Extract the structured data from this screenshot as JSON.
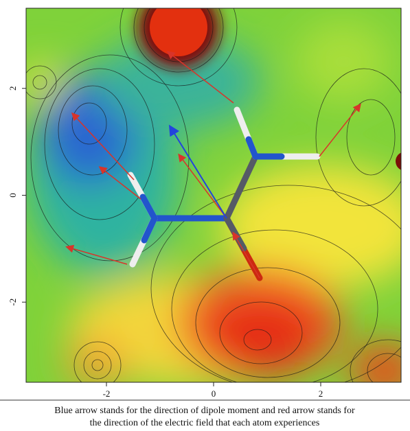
{
  "chart_data": {
    "type": "contour",
    "xlim": [
      -3.5,
      3.5
    ],
    "ylim": [
      -3.5,
      3.5
    ],
    "xticks": [
      -2,
      0,
      2
    ],
    "yticks": [
      -2,
      0,
      2
    ],
    "caption": [
      "Blue arrow stands for the direction of dipole moment and red arrow stands for",
      "the direction of the electric field that each atom experiences"
    ]
  }
}
